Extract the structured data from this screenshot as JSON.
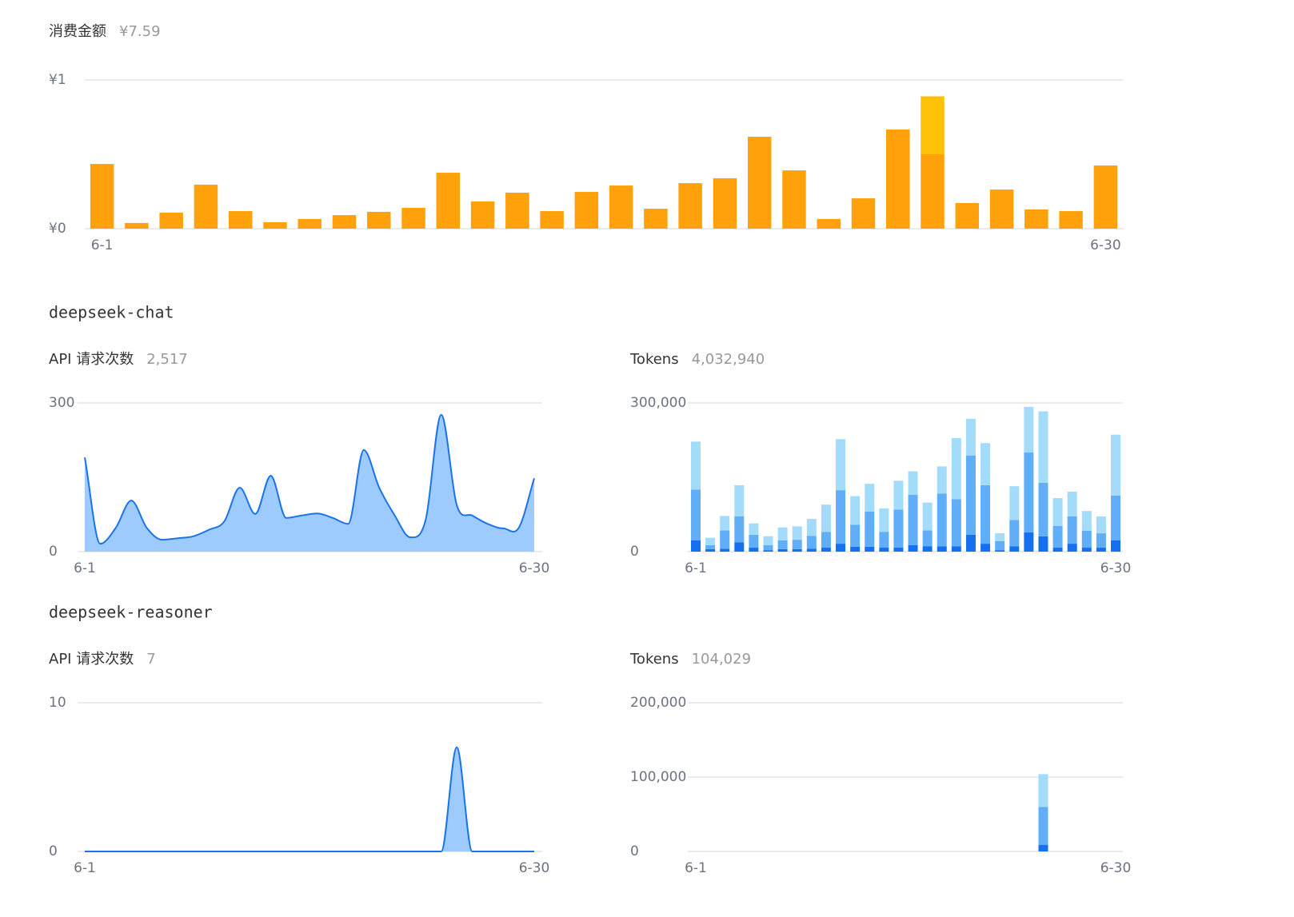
{
  "sections": [
    {
      "title": "deepseek-chat"
    },
    {
      "title": "deepseek-reasoner"
    }
  ],
  "chart_data": [
    {
      "type": "bar",
      "stacked": true,
      "title": "消费金额",
      "total": "¥7.59",
      "categories": [
        "6-1",
        null,
        null,
        null,
        null,
        null,
        null,
        null,
        null,
        null,
        null,
        null,
        null,
        null,
        null,
        null,
        null,
        null,
        null,
        null,
        null,
        null,
        null,
        null,
        null,
        null,
        null,
        null,
        null,
        "6-30"
      ],
      "series": [
        {
          "color": "#ffa10a",
          "values": [
            0.435,
            0.038,
            0.108,
            0.296,
            0.118,
            0.043,
            0.065,
            0.091,
            0.113,
            0.14,
            0.376,
            0.183,
            0.242,
            0.118,
            0.247,
            0.29,
            0.134,
            0.306,
            0.339,
            0.618,
            0.392,
            0.065,
            0.204,
            0.667,
            0.5,
            0.172,
            0.263,
            0.129,
            0.118,
            0.425
          ]
        },
        {
          "color": "#ffc107",
          "values": [
            0,
            0,
            0,
            0,
            0,
            0,
            0,
            0,
            0,
            0,
            0,
            0,
            0,
            0,
            0,
            0,
            0,
            0,
            0,
            0,
            0,
            0,
            0,
            0,
            0.39,
            0,
            0,
            0,
            0,
            0
          ]
        }
      ],
      "ylim": [
        0,
        1
      ],
      "yticks": [
        {
          "value": 1,
          "label": "¥1"
        },
        {
          "value": 0,
          "label": "¥0"
        }
      ],
      "grid": true
    },
    {
      "type": "line",
      "title": "API 请求次数",
      "total": "2,517",
      "categories": [
        "6-1",
        null,
        null,
        null,
        null,
        null,
        null,
        null,
        null,
        null,
        null,
        null,
        null,
        null,
        null,
        null,
        null,
        null,
        null,
        null,
        null,
        null,
        null,
        null,
        null,
        null,
        null,
        null,
        null,
        "6-30"
      ],
      "color": "#1a73e8",
      "fill": "#9ecbfd",
      "values": [
        190,
        16,
        48,
        103,
        48,
        24,
        27,
        31,
        44,
        61,
        129,
        76,
        153,
        68,
        73,
        77,
        68,
        56,
        205,
        129,
        73,
        29,
        65,
        276,
        94,
        73,
        56,
        47,
        48,
        148
      ],
      "ylim": [
        0,
        300
      ],
      "yticks": [
        300,
        0
      ],
      "grid": true
    },
    {
      "type": "bar",
      "stacked": true,
      "title": "Tokens",
      "total": "4,032,940",
      "categories": [
        "6-1",
        null,
        null,
        null,
        null,
        null,
        null,
        null,
        null,
        null,
        null,
        null,
        null,
        null,
        null,
        null,
        null,
        null,
        null,
        null,
        null,
        null,
        null,
        null,
        null,
        null,
        null,
        null,
        null,
        "6-30"
      ],
      "series": [
        {
          "color": "#1570ef",
          "values": [
            23000,
            5000,
            6000,
            19000,
            8000,
            3000,
            5000,
            5000,
            6000,
            8000,
            16000,
            10000,
            10000,
            8000,
            8000,
            13000,
            11000,
            11000,
            11000,
            34000,
            16000,
            3000,
            11000,
            39000,
            31000,
            8000,
            16000,
            8000,
            8000,
            23000
          ]
        },
        {
          "color": "#60aef8",
          "values": [
            102000,
            8000,
            37000,
            52000,
            26000,
            10000,
            18000,
            19000,
            26000,
            32000,
            108000,
            44000,
            71000,
            32000,
            77000,
            102000,
            32000,
            106000,
            95000,
            160000,
            118000,
            18000,
            53000,
            161000,
            108000,
            44000,
            55000,
            34000,
            29000,
            90000
          ]
        },
        {
          "color": "#a3dcfb",
          "values": [
            97000,
            15000,
            29000,
            63000,
            23000,
            18000,
            26000,
            27000,
            34000,
            55000,
            103000,
            58000,
            56000,
            47000,
            58000,
            47000,
            56000,
            55000,
            123000,
            74000,
            85000,
            16000,
            68000,
            92000,
            144000,
            56000,
            50000,
            40000,
            34000,
            123000
          ]
        }
      ],
      "ylim": [
        0,
        300000
      ],
      "yticks": [
        {
          "value": 300000,
          "label": "300,000"
        },
        0
      ],
      "grid": true
    },
    {
      "type": "line",
      "title": "API 请求次数",
      "total": "7",
      "categories": [
        "6-1",
        null,
        null,
        null,
        null,
        null,
        null,
        null,
        null,
        null,
        null,
        null,
        null,
        null,
        null,
        null,
        null,
        null,
        null,
        null,
        null,
        null,
        null,
        null,
        null,
        null,
        null,
        null,
        null,
        "6-30"
      ],
      "color": "#1a73e8",
      "fill": "#9ecbfd",
      "values": [
        0,
        0,
        0,
        0,
        0,
        0,
        0,
        0,
        0,
        0,
        0,
        0,
        0,
        0,
        0,
        0,
        0,
        0,
        0,
        0,
        0,
        0,
        0,
        0,
        7,
        0,
        0,
        0,
        0,
        0
      ],
      "ylim": [
        0,
        10
      ],
      "yticks": [
        10,
        0
      ],
      "grid": true
    },
    {
      "type": "bar",
      "stacked": true,
      "title": "Tokens",
      "total": "104,029",
      "categories": [
        "6-1",
        null,
        null,
        null,
        null,
        null,
        null,
        null,
        null,
        null,
        null,
        null,
        null,
        null,
        null,
        null,
        null,
        null,
        null,
        null,
        null,
        null,
        null,
        null,
        null,
        null,
        null,
        null,
        null,
        "6-30"
      ],
      "series": [
        {
          "color": "#1570ef",
          "values": [
            0,
            0,
            0,
            0,
            0,
            0,
            0,
            0,
            0,
            0,
            0,
            0,
            0,
            0,
            0,
            0,
            0,
            0,
            0,
            0,
            0,
            0,
            0,
            0,
            9000,
            0,
            0,
            0,
            0,
            0
          ]
        },
        {
          "color": "#60aef8",
          "values": [
            0,
            0,
            0,
            0,
            0,
            0,
            0,
            0,
            0,
            0,
            0,
            0,
            0,
            0,
            0,
            0,
            0,
            0,
            0,
            0,
            0,
            0,
            0,
            0,
            51000,
            0,
            0,
            0,
            0,
            0
          ]
        },
        {
          "color": "#a3dcfb",
          "values": [
            0,
            0,
            0,
            0,
            0,
            0,
            0,
            0,
            0,
            0,
            0,
            0,
            0,
            0,
            0,
            0,
            0,
            0,
            0,
            0,
            0,
            0,
            0,
            0,
            44000,
            0,
            0,
            0,
            0,
            0
          ]
        }
      ],
      "ylim": [
        0,
        200000
      ],
      "yticks": [
        {
          "value": 200000,
          "label": "200,000"
        },
        {
          "value": 100000,
          "label": "100,000"
        },
        0
      ],
      "grid": true
    }
  ]
}
